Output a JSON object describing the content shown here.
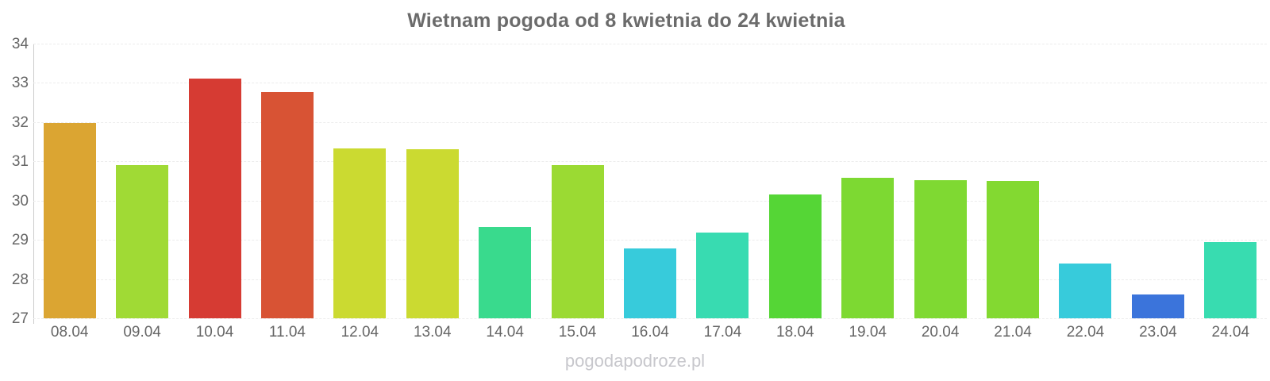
{
  "title": "Wietnam pogoda od 8 kwietnia do 24 kwietnia",
  "watermark": "pogodapodroze.pl",
  "colors": {
    "title_text": "#6b6b6b",
    "axis_label_text": "#666666",
    "axis_line": "#cccccc",
    "gridline": "#ececec",
    "watermark_text": "#c7c7cc",
    "background": "#ffffff"
  },
  "chart_data": {
    "type": "bar",
    "title": "Wietnam pogoda od 8 kwietnia do 24 kwietnia",
    "xlabel": "",
    "ylabel": "",
    "categories": [
      "08.04",
      "09.04",
      "10.04",
      "11.04",
      "12.04",
      "13.04",
      "14.04",
      "15.04",
      "16.04",
      "17.04",
      "18.04",
      "19.04",
      "20.04",
      "21.04",
      "22.04",
      "23.04",
      "24.04"
    ],
    "values": [
      31.97,
      30.9,
      33.1,
      32.77,
      31.33,
      31.3,
      29.32,
      30.9,
      28.78,
      29.18,
      30.15,
      30.58,
      30.53,
      30.5,
      28.4,
      27.6,
      28.95
    ],
    "bar_colors": [
      "#DBA532",
      "#A0DA35",
      "#D63B33",
      "#D85334",
      "#CBDA31",
      "#CBDA31",
      "#39DA8D",
      "#9BDA33",
      "#37CBDB",
      "#38DBB1",
      "#55D636",
      "#7DD932",
      "#7FD932",
      "#83D931",
      "#37CBDB",
      "#3B74DB",
      "#38DCB0"
    ],
    "ylim": [
      27,
      34
    ],
    "yticks": [
      34,
      33,
      32,
      31,
      30,
      29,
      28,
      27
    ],
    "grid": true,
    "legend": false
  }
}
